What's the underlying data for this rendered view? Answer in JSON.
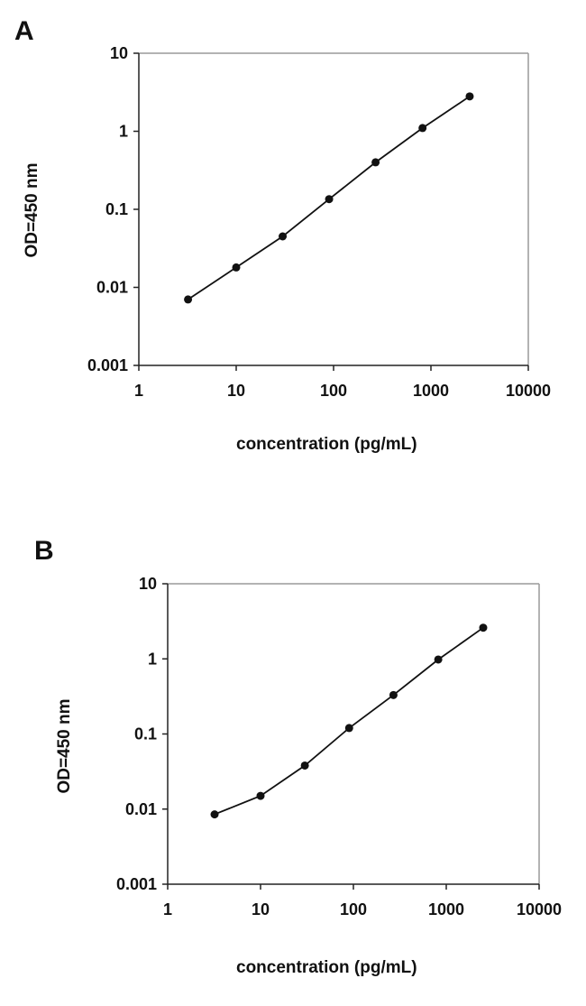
{
  "chart_data": [
    {
      "panel_label": "A",
      "type": "line",
      "xscale": "log",
      "yscale": "log",
      "xlabel": "concentration (pg/mL)",
      "ylabel": "OD=450 nm",
      "xlim": [
        1,
        10000
      ],
      "ylim": [
        0.001,
        10
      ],
      "x_ticks": [
        "1",
        "10",
        "100",
        "1000",
        "10000"
      ],
      "y_ticks": [
        "0.001",
        "0.01",
        "0.1",
        "1",
        "10"
      ],
      "x": [
        3.2,
        10,
        30,
        90,
        270,
        820,
        2500
      ],
      "y": [
        0.007,
        0.018,
        0.045,
        0.135,
        0.4,
        1.1,
        2.8
      ]
    },
    {
      "panel_label": "B",
      "type": "line",
      "xscale": "log",
      "yscale": "log",
      "xlabel": "concentration (pg/mL)",
      "ylabel": "OD=450 nm",
      "xlim": [
        1,
        10000
      ],
      "ylim": [
        0.001,
        10
      ],
      "x_ticks": [
        "1",
        "10",
        "100",
        "1000",
        "10000"
      ],
      "y_ticks": [
        "0.001",
        "0.01",
        "0.1",
        "1",
        "10"
      ],
      "x": [
        3.2,
        10,
        30,
        90,
        270,
        820,
        2500
      ],
      "y": [
        0.0085,
        0.015,
        0.038,
        0.12,
        0.33,
        0.98,
        2.6
      ]
    }
  ]
}
